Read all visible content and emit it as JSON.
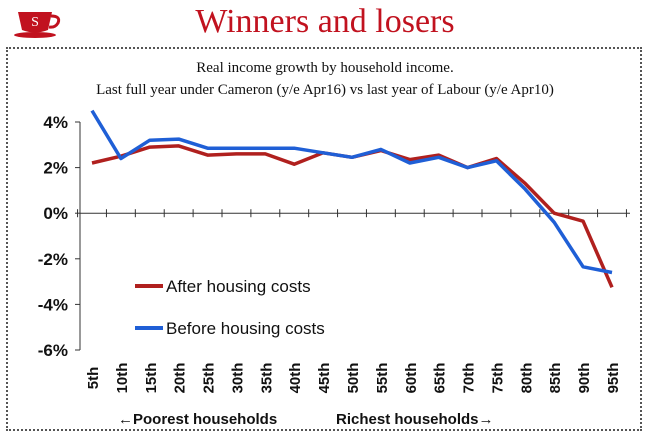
{
  "header": {
    "logo_icon": "teacup-logo-icon",
    "logo_letter": "S",
    "title": "Winners and losers",
    "title_color": "#c1121f"
  },
  "chart_data": {
    "type": "line",
    "title": "Real income growth by household income.",
    "subtitle": "Last full year under Cameron (y/e Apr16) vs last year of Labour (y/e Apr10)",
    "categories": [
      "5th",
      "10th",
      "15th",
      "20th",
      "25th",
      "30th",
      "35th",
      "40th",
      "45th",
      "50th",
      "55th",
      "60th",
      "65th",
      "70th",
      "75th",
      "80th",
      "85th",
      "90th",
      "95th"
    ],
    "ylim": [
      -6,
      4
    ],
    "yticks": [
      4,
      2,
      0,
      -2,
      -4,
      -6
    ],
    "ytick_labels": [
      "4%",
      "2%",
      "0%",
      "-2%",
      "-4%",
      "-6%"
    ],
    "series": [
      {
        "name": "After housing costs",
        "color": "#b0201e",
        "values": [
          2.2,
          2.5,
          2.9,
          2.95,
          2.55,
          2.6,
          2.6,
          2.15,
          2.65,
          2.45,
          2.75,
          2.35,
          2.55,
          2.0,
          2.4,
          1.3,
          0.0,
          -0.35,
          -3.25
        ]
      },
      {
        "name": "Before housing costs",
        "color": "#1f5fd6",
        "values": [
          4.5,
          2.4,
          3.2,
          3.25,
          2.85,
          2.85,
          2.85,
          2.85,
          2.65,
          2.45,
          2.8,
          2.2,
          2.45,
          2.0,
          2.3,
          1.05,
          -0.4,
          -2.35,
          -2.6
        ]
      }
    ],
    "legend_position": "bottom-left",
    "x_annotations": {
      "left": "←Poorest households",
      "right": "Richest households→"
    }
  }
}
